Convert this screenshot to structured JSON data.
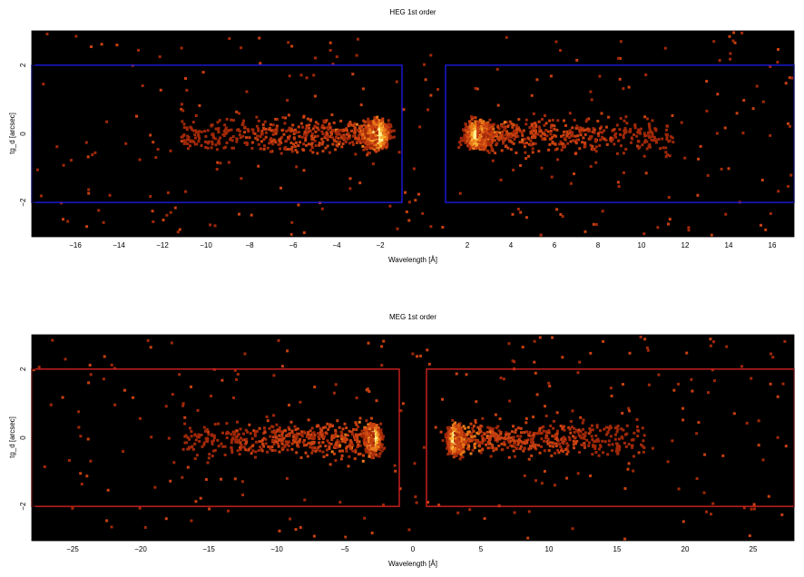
{
  "chart_data": [
    {
      "type": "heatmap",
      "title": "HEG 1st order",
      "xlabel": "Wavelength [Å]",
      "ylabel": "tg_d [arcsec]",
      "xlim": [
        -18,
        17
      ],
      "ylim": [
        -3,
        3
      ],
      "xticks": [
        -16,
        -14,
        -12,
        -10,
        -8,
        -6,
        -4,
        -2,
        2,
        4,
        6,
        8,
        10,
        12,
        14,
        16
      ],
      "yticks": [
        -2,
        0,
        2
      ],
      "grid": false,
      "colormap": "hot",
      "background": "#000000",
      "region_color": "#1a1adc",
      "regions": [
        {
          "x": [
            -18,
            -1
          ],
          "y": [
            -2,
            2
          ]
        },
        {
          "x": [
            1,
            17
          ],
          "y": [
            -2,
            2
          ]
        }
      ],
      "peaks": [
        {
          "x": -2.2,
          "y": 0,
          "strength": "bright"
        },
        {
          "x": 2.4,
          "y": 0,
          "strength": "bright"
        }
      ]
    },
    {
      "type": "heatmap",
      "title": "MEG 1st order",
      "xlabel": "Wavelength [Å]",
      "ylabel": "tg_d [arcsec]",
      "xlim": [
        -28,
        28
      ],
      "ylim": [
        -3,
        3
      ],
      "xticks": [
        -25,
        -20,
        -15,
        -10,
        -5,
        0,
        5,
        10,
        15,
        20,
        25
      ],
      "yticks": [
        -2,
        0,
        2
      ],
      "grid": false,
      "colormap": "hot",
      "background": "#000000",
      "region_color": "#d02020",
      "regions": [
        {
          "x": [
            -28,
            -1
          ],
          "y": [
            -2,
            2
          ]
        },
        {
          "x": [
            1,
            28
          ],
          "y": [
            -2,
            2
          ]
        }
      ],
      "peaks": [
        {
          "x": -3.0,
          "y": 0,
          "strength": "bright"
        },
        {
          "x": 3.0,
          "y": 0,
          "strength": "bright"
        }
      ]
    }
  ]
}
